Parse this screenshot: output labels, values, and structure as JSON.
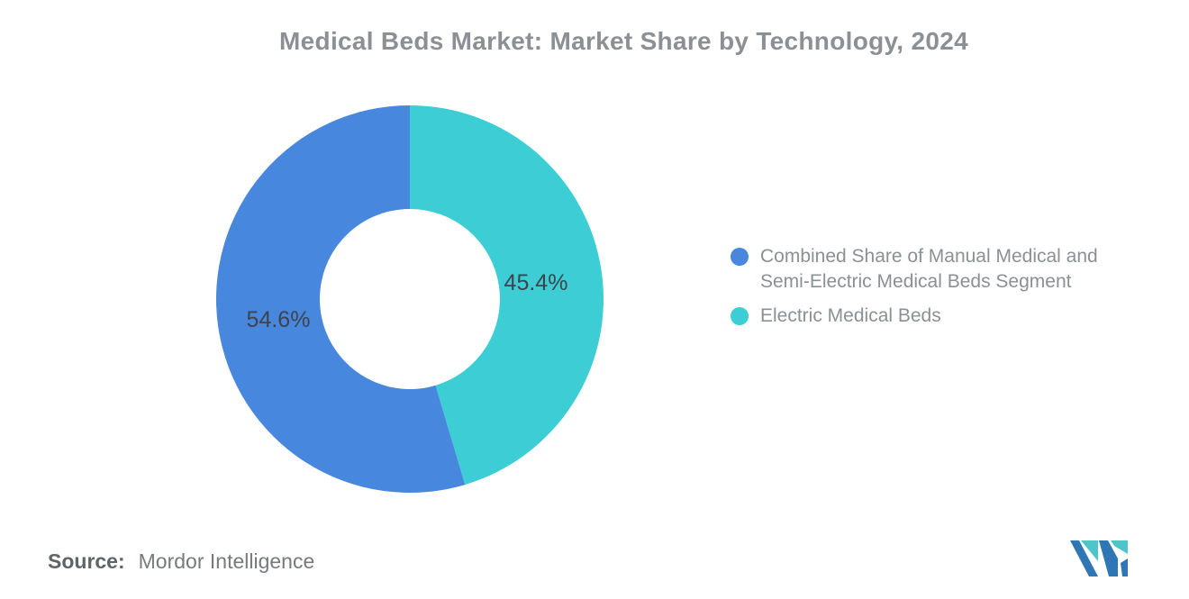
{
  "chart_data": {
    "type": "pie",
    "donut": true,
    "title": "Medical Beds Market: Market Share by Technology, 2024",
    "unit": "%",
    "start_angle_deg": 0,
    "direction": "counterclockwise-from-top",
    "inner_radius_ratio": 0.465,
    "legend_position": "right",
    "slices": [
      {
        "label": "Combined Share of Manual Medical and Semi-Electric Medical Beds Segment",
        "value": 54.6,
        "display": "54.6%",
        "color": "#4787DE"
      },
      {
        "label": "Electric Medical Beds",
        "value": 45.4,
        "display": "45.4%",
        "color": "#3CCDD5"
      }
    ]
  },
  "source": {
    "label": "Source:",
    "name": "Mordor Intelligence"
  },
  "logo": {
    "name": "mordor-intelligence-logo",
    "blue": "#2F76B5",
    "teal": "#4EC5C8"
  }
}
